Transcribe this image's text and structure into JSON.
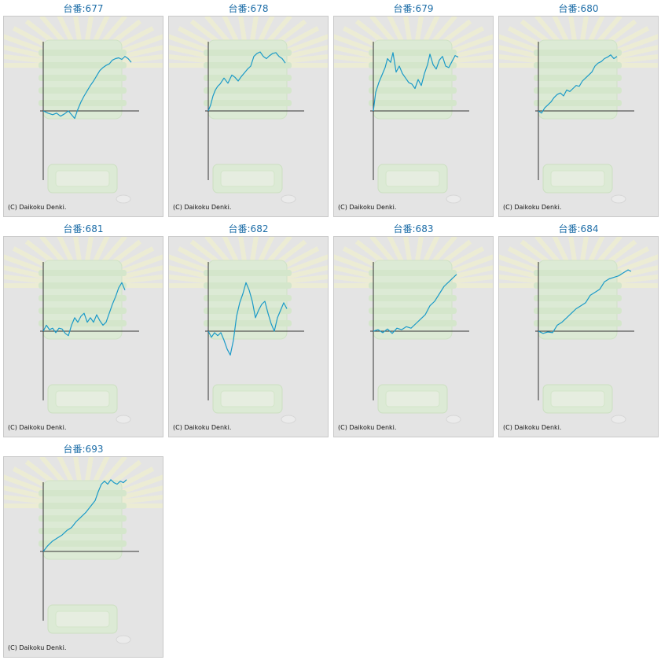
{
  "colors": {
    "series": "#1b9ac8",
    "title": "#1e6ea8",
    "axis": "#333333",
    "panel_bg": "#e4e4e4"
  },
  "chart_data": [
    {
      "type": "line",
      "title": "台番:677",
      "copyright": "(C) Daikoku Denki.",
      "points": [
        [
          0,
          0
        ],
        [
          6,
          -3
        ],
        [
          12,
          -5
        ],
        [
          17,
          -3
        ],
        [
          22,
          -7
        ],
        [
          27,
          -4
        ],
        [
          32,
          0
        ],
        [
          36,
          -5
        ],
        [
          40,
          -10
        ],
        [
          44,
          2
        ],
        [
          48,
          12
        ],
        [
          52,
          20
        ],
        [
          56,
          27
        ],
        [
          60,
          34
        ],
        [
          64,
          40
        ],
        [
          68,
          47
        ],
        [
          72,
          54
        ],
        [
          76,
          58
        ],
        [
          80,
          61
        ],
        [
          84,
          63
        ],
        [
          88,
          68
        ],
        [
          92,
          70
        ],
        [
          96,
          71
        ],
        [
          100,
          69
        ],
        [
          104,
          73
        ],
        [
          108,
          70
        ],
        [
          112,
          65
        ]
      ]
    },
    {
      "type": "line",
      "title": "台番:678",
      "copyright": "(C) Daikoku Denki.",
      "points": [
        [
          0,
          0
        ],
        [
          3,
          8
        ],
        [
          6,
          20
        ],
        [
          9,
          28
        ],
        [
          12,
          33
        ],
        [
          15,
          36
        ],
        [
          20,
          44
        ],
        [
          25,
          37
        ],
        [
          30,
          48
        ],
        [
          34,
          45
        ],
        [
          38,
          40
        ],
        [
          42,
          46
        ],
        [
          46,
          51
        ],
        [
          50,
          56
        ],
        [
          54,
          60
        ],
        [
          58,
          73
        ],
        [
          62,
          77
        ],
        [
          66,
          79
        ],
        [
          70,
          73
        ],
        [
          74,
          70
        ],
        [
          78,
          74
        ],
        [
          82,
          77
        ],
        [
          86,
          78
        ],
        [
          90,
          73
        ],
        [
          94,
          70
        ],
        [
          98,
          64
        ]
      ]
    },
    {
      "type": "line",
      "title": "台番:679",
      "copyright": "(C) Daikoku Denki.",
      "points": [
        [
          0,
          0
        ],
        [
          3,
          25
        ],
        [
          7,
          38
        ],
        [
          11,
          48
        ],
        [
          15,
          58
        ],
        [
          18,
          70
        ],
        [
          22,
          65
        ],
        [
          25,
          78
        ],
        [
          29,
          52
        ],
        [
          33,
          60
        ],
        [
          37,
          50
        ],
        [
          41,
          44
        ],
        [
          45,
          38
        ],
        [
          49,
          36
        ],
        [
          53,
          30
        ],
        [
          57,
          42
        ],
        [
          61,
          34
        ],
        [
          65,
          50
        ],
        [
          69,
          62
        ],
        [
          72,
          76
        ],
        [
          76,
          62
        ],
        [
          80,
          56
        ],
        [
          84,
          68
        ],
        [
          88,
          73
        ],
        [
          92,
          60
        ],
        [
          96,
          58
        ],
        [
          100,
          66
        ],
        [
          104,
          74
        ],
        [
          108,
          72
        ]
      ]
    },
    {
      "type": "line",
      "title": "台番:680",
      "copyright": "(C) Daikoku Denki.",
      "points": [
        [
          0,
          0
        ],
        [
          4,
          -3
        ],
        [
          8,
          4
        ],
        [
          12,
          8
        ],
        [
          16,
          12
        ],
        [
          20,
          18
        ],
        [
          24,
          22
        ],
        [
          28,
          24
        ],
        [
          32,
          20
        ],
        [
          36,
          28
        ],
        [
          40,
          26
        ],
        [
          44,
          30
        ],
        [
          48,
          34
        ],
        [
          52,
          33
        ],
        [
          56,
          40
        ],
        [
          60,
          44
        ],
        [
          64,
          48
        ],
        [
          68,
          52
        ],
        [
          72,
          60
        ],
        [
          76,
          64
        ],
        [
          80,
          66
        ],
        [
          84,
          70
        ],
        [
          88,
          72
        ],
        [
          92,
          75
        ],
        [
          96,
          70
        ],
        [
          100,
          73
        ]
      ]
    },
    {
      "type": "line",
      "title": "台番:681",
      "copyright": "(C) Daikoku Denki.",
      "points": [
        [
          0,
          0
        ],
        [
          4,
          8
        ],
        [
          8,
          2
        ],
        [
          12,
          4
        ],
        [
          16,
          -2
        ],
        [
          20,
          4
        ],
        [
          24,
          3
        ],
        [
          28,
          -3
        ],
        [
          32,
          -6
        ],
        [
          36,
          8
        ],
        [
          40,
          18
        ],
        [
          44,
          12
        ],
        [
          48,
          20
        ],
        [
          52,
          24
        ],
        [
          56,
          12
        ],
        [
          60,
          18
        ],
        [
          64,
          12
        ],
        [
          68,
          22
        ],
        [
          72,
          14
        ],
        [
          76,
          8
        ],
        [
          80,
          12
        ],
        [
          84,
          24
        ],
        [
          88,
          36
        ],
        [
          92,
          46
        ],
        [
          96,
          58
        ],
        [
          100,
          65
        ],
        [
          104,
          55
        ]
      ]
    },
    {
      "type": "line",
      "title": "台番:682",
      "copyright": "(C) Daikoku Denki.",
      "points": [
        [
          0,
          0
        ],
        [
          4,
          -8
        ],
        [
          8,
          -2
        ],
        [
          12,
          -6
        ],
        [
          16,
          -2
        ],
        [
          20,
          -12
        ],
        [
          24,
          -24
        ],
        [
          28,
          -32
        ],
        [
          32,
          -12
        ],
        [
          36,
          20
        ],
        [
          40,
          38
        ],
        [
          44,
          50
        ],
        [
          48,
          65
        ],
        [
          52,
          55
        ],
        [
          56,
          40
        ],
        [
          60,
          18
        ],
        [
          64,
          28
        ],
        [
          68,
          36
        ],
        [
          72,
          40
        ],
        [
          76,
          24
        ],
        [
          80,
          10
        ],
        [
          84,
          0
        ],
        [
          88,
          18
        ],
        [
          92,
          28
        ],
        [
          96,
          38
        ],
        [
          100,
          30
        ]
      ]
    },
    {
      "type": "line",
      "title": "台番:683",
      "copyright": "(C) Daikoku Denki.",
      "points": [
        [
          0,
          0
        ],
        [
          6,
          2
        ],
        [
          12,
          -2
        ],
        [
          18,
          3
        ],
        [
          24,
          -3
        ],
        [
          30,
          4
        ],
        [
          36,
          2
        ],
        [
          42,
          6
        ],
        [
          48,
          4
        ],
        [
          54,
          10
        ],
        [
          60,
          16
        ],
        [
          66,
          22
        ],
        [
          72,
          34
        ],
        [
          78,
          40
        ],
        [
          84,
          50
        ],
        [
          90,
          60
        ],
        [
          96,
          66
        ],
        [
          102,
          72
        ],
        [
          106,
          76
        ]
      ]
    },
    {
      "type": "line",
      "title": "台番:684",
      "copyright": "(C) Daikoku Denki.",
      "points": [
        [
          0,
          0
        ],
        [
          6,
          -3
        ],
        [
          12,
          -1
        ],
        [
          18,
          -2
        ],
        [
          24,
          8
        ],
        [
          30,
          12
        ],
        [
          36,
          18
        ],
        [
          42,
          24
        ],
        [
          48,
          30
        ],
        [
          54,
          34
        ],
        [
          60,
          38
        ],
        [
          66,
          48
        ],
        [
          72,
          52
        ],
        [
          78,
          56
        ],
        [
          84,
          66
        ],
        [
          90,
          70
        ],
        [
          96,
          72
        ],
        [
          102,
          74
        ],
        [
          108,
          78
        ],
        [
          114,
          82
        ],
        [
          118,
          80
        ]
      ]
    },
    {
      "type": "line",
      "title": "台番:693",
      "copyright": "(C) Daikoku Denki.",
      "points": [
        [
          0,
          0
        ],
        [
          6,
          8
        ],
        [
          12,
          14
        ],
        [
          18,
          18
        ],
        [
          24,
          22
        ],
        [
          30,
          28
        ],
        [
          36,
          32
        ],
        [
          42,
          40
        ],
        [
          48,
          46
        ],
        [
          54,
          52
        ],
        [
          60,
          60
        ],
        [
          66,
          68
        ],
        [
          70,
          80
        ],
        [
          74,
          90
        ],
        [
          78,
          94
        ],
        [
          82,
          90
        ],
        [
          86,
          96
        ],
        [
          90,
          92
        ],
        [
          94,
          90
        ],
        [
          98,
          94
        ],
        [
          102,
          92
        ],
        [
          106,
          96
        ]
      ]
    }
  ]
}
